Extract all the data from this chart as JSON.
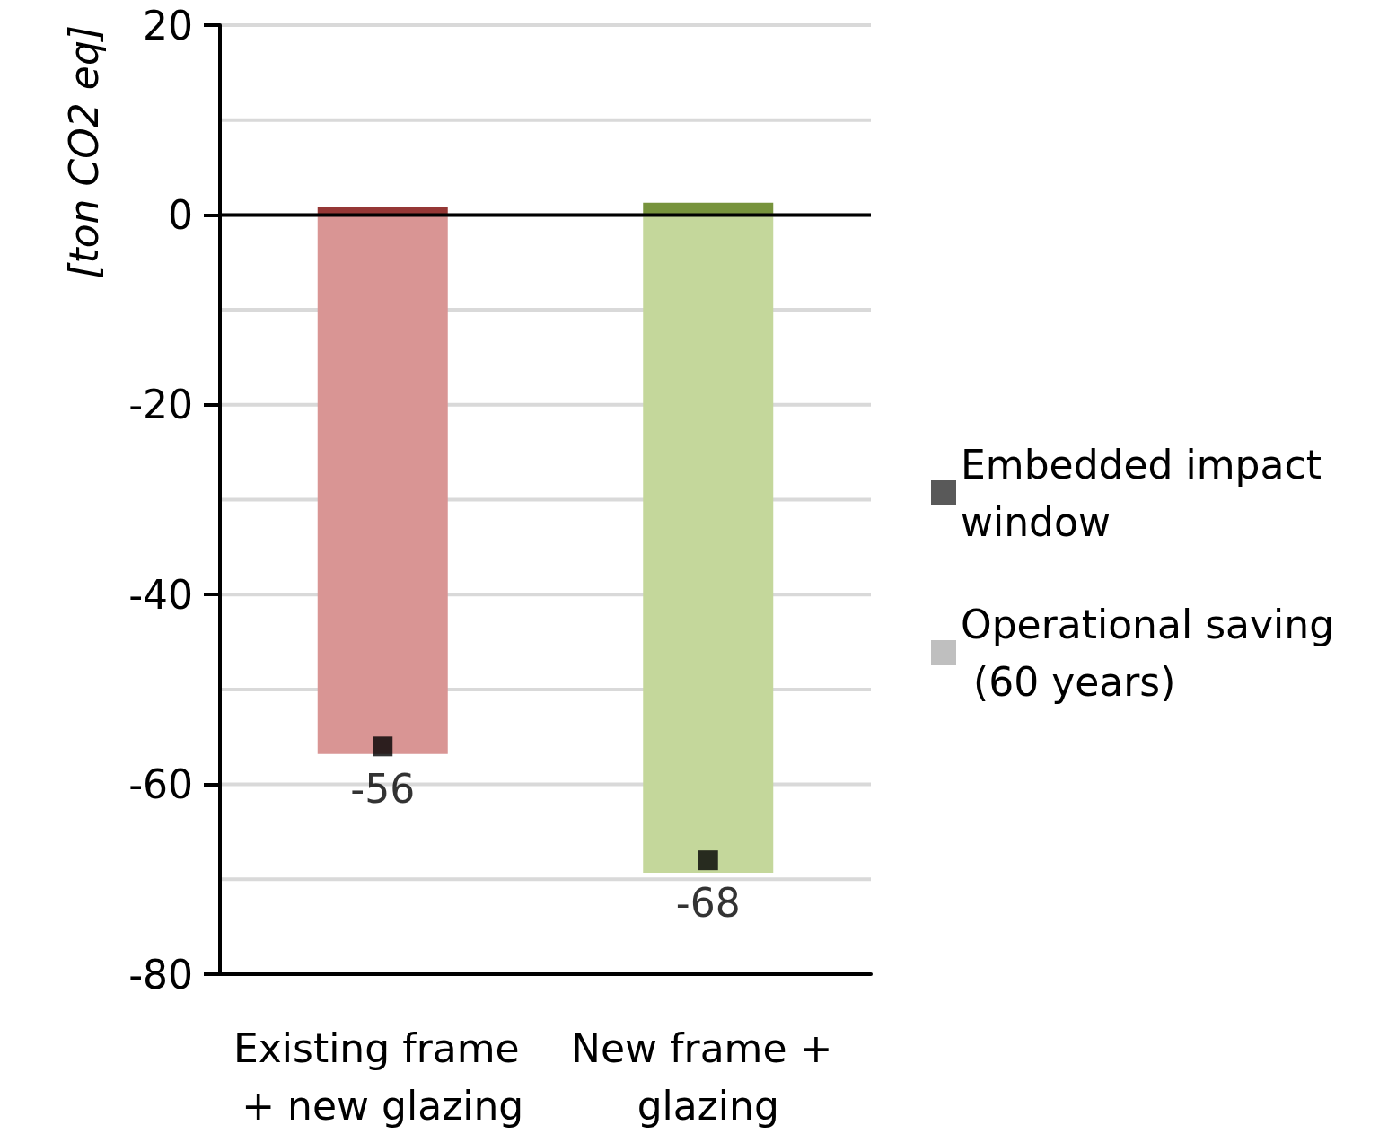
{
  "chart_data": {
    "type": "bar",
    "stacked": true,
    "ylabel": "[ton CO2 eq]",
    "categories": [
      "Existing frame + new glazing",
      "New frame + glazing"
    ],
    "series": [
      {
        "name": "Embedded impact window",
        "color": "#595959",
        "colors": [
          "#953735",
          "#77933c"
        ],
        "values": [
          0.8,
          1.3
        ]
      },
      {
        "name": "Operational saving (60 years)",
        "color": "#bfbfbf",
        "colors": [
          "#d99594",
          "#c4d79b"
        ],
        "values": [
          -56.8,
          -69.3
        ]
      },
      {
        "type": "scatter",
        "x": [
          "Existing frame + new glazing",
          "New frame + glazing"
        ],
        "color": "#000000",
        "marker": "square",
        "values": [
          -56,
          -68
        ],
        "value_labels": [
          "-56",
          "-68"
        ]
      }
    ],
    "ylim": [
      -80,
      20
    ],
    "yticks": [
      -80,
      {
        "value": -70,
        "label": null
      },
      -60,
      {
        "value": -50,
        "label": null
      },
      -40,
      {
        "value": -30,
        "label": null
      },
      -20,
      {
        "value": -10,
        "label": null
      },
      0,
      {
        "value": 10,
        "label": null
      },
      20
    ],
    "grid": true,
    "legend": "right"
  }
}
